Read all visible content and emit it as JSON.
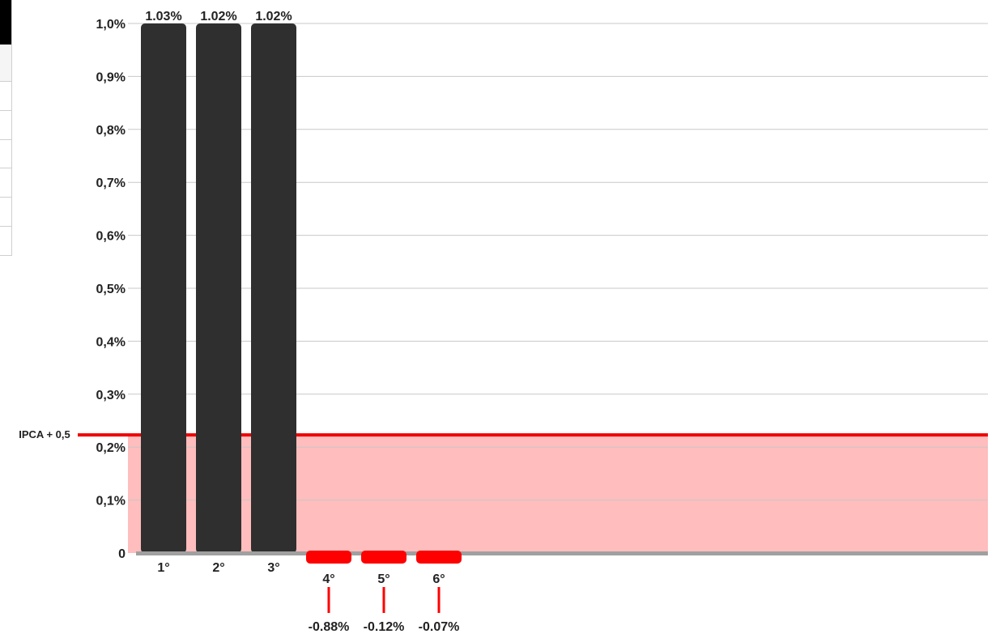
{
  "colors": {
    "positive_bar": "#2f2f2f",
    "negative_bar": "#ff0000",
    "band_fill": "#ffbdbd",
    "reference_line": "#ee0000",
    "baseline": "#a0a0a0",
    "grid": "#c8c8c8"
  },
  "chart_data": {
    "type": "bar",
    "title": "",
    "xlabel": "",
    "ylabel": "",
    "categories": [
      "1°",
      "2°",
      "3°",
      "4°",
      "5°",
      "6°"
    ],
    "values": [
      1.03,
      1.02,
      1.02,
      -0.88,
      -0.12,
      -0.07
    ],
    "value_labels": [
      "1.03%",
      "1.02%",
      "1.02%",
      "-0.88%",
      "-0.12%",
      "-0.07%"
    ],
    "ylim": [
      0,
      1.0
    ],
    "yticks": [
      0,
      0.1,
      0.2,
      0.3,
      0.4,
      0.5,
      0.6,
      0.7,
      0.8,
      0.9,
      1.0
    ],
    "ytick_labels": [
      "0",
      "0,1%",
      "0,2%",
      "0,3%",
      "0,4%",
      "0,5%",
      "0,6%",
      "0,7%",
      "0,8%",
      "0,9%",
      "1,0%"
    ],
    "grid": true,
    "reference_line": {
      "label": "IPCA + 0,5",
      "value": 0.223
    }
  }
}
